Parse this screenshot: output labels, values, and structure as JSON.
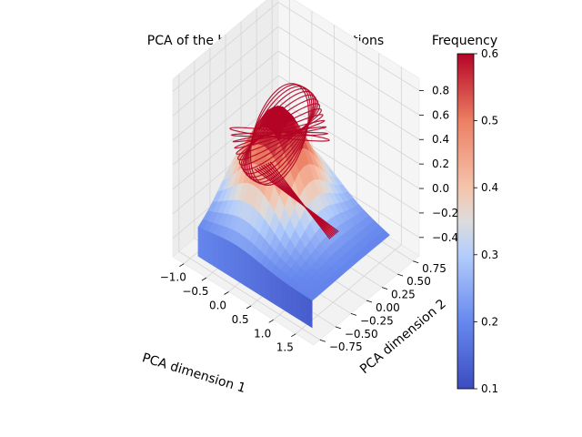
{
  "chart_data": {
    "type": "surface3d",
    "title": "PCA of the hidden neuron activations",
    "xlabel": "PCA dimension 1",
    "ylabel": "PCA dimension 2",
    "zlabel": "",
    "x_ticks": [
      "−1.0",
      "−0.5",
      "0.0",
      "0.5",
      "1.0",
      "1.5"
    ],
    "y_ticks": [
      "−0.75",
      "−0.50",
      "−0.25",
      "0.00",
      "0.25",
      "0.50",
      "0.75"
    ],
    "z_ticks": [
      "−0.4",
      "−0.2",
      "0.0",
      "0.2",
      "0.4",
      "0.6",
      "0.8"
    ],
    "x_range": [
      -1.25,
      1.9
    ],
    "y_range": [
      -0.85,
      0.85
    ],
    "z_range": [
      -0.55,
      0.9
    ],
    "colorbar": {
      "label": "Frequency",
      "ticks": [
        "0.1",
        "0.2",
        "0.3",
        "0.4",
        "0.5",
        "0.6"
      ],
      "range": [
        0.1,
        0.6
      ],
      "colormap": "coolwarm"
    },
    "grid": true,
    "colors": {
      "low": "#3b4cc0",
      "mid": "#dddddd",
      "high": "#b40426",
      "trajectory": "#b40426"
    }
  }
}
